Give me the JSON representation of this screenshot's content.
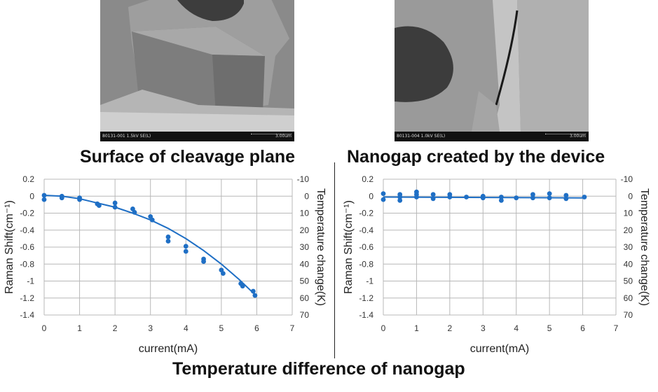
{
  "images": {
    "left": {
      "footer_id": "80131-001 1.5kV SE(L)",
      "footer_scale": "3.00um",
      "caption": "Surface of cleavage plane"
    },
    "right": {
      "footer_id": "80131-004 1.0kV SE(L)",
      "footer_scale": "3.00um",
      "caption": "Nanogap created by the device"
    }
  },
  "main_caption": "Temperature difference of nanogap",
  "colors": {
    "series": "#1f6fc5",
    "grid": "#b8b8b8",
    "axis_text": "#333333"
  },
  "chart_data": [
    {
      "type": "scatter",
      "xlabel": "current(mA)",
      "ylabel": "Raman Shift(cm⁻¹)",
      "y2label": "Temperature change(K)",
      "xlim": [
        0,
        7
      ],
      "ylim": [
        -1.4,
        0.2
      ],
      "y2lim": [
        -10,
        70
      ],
      "xticks": [
        "0",
        "1",
        "2",
        "3",
        "4",
        "5",
        "6",
        "7"
      ],
      "yticks": [
        "0.2",
        "0",
        "-0.2",
        "-0.4",
        "-0.6",
        "-0.8",
        "-1",
        "-1.2",
        "-1.4"
      ],
      "y2ticks": [
        "-10",
        "0",
        "10",
        "20",
        "30",
        "40",
        "50",
        "60",
        "70"
      ],
      "grid": true,
      "series": [
        {
          "x": [
            0.0,
            0.0,
            0.5,
            0.5,
            1.0,
            1.0,
            1.5,
            1.55,
            2.0,
            2.0,
            2.5,
            2.55,
            3.0,
            3.05,
            3.5,
            3.5,
            4.0,
            4.0,
            4.5,
            4.5,
            5.0,
            5.05,
            5.55,
            5.6,
            5.9,
            5.95
          ],
          "y": [
            0.01,
            -0.04,
            0.0,
            -0.02,
            -0.02,
            -0.04,
            -0.09,
            -0.11,
            -0.08,
            -0.13,
            -0.15,
            -0.19,
            -0.24,
            -0.28,
            -0.48,
            -0.53,
            -0.59,
            -0.65,
            -0.74,
            -0.77,
            -0.87,
            -0.91,
            -1.03,
            -1.06,
            -1.12,
            -1.17
          ]
        }
      ],
      "fit": {
        "x": [
          0,
          0.5,
          1,
          1.5,
          2,
          2.5,
          3,
          3.5,
          4,
          4.5,
          5,
          5.5,
          6
        ],
        "y": [
          0.01,
          0.0,
          -0.03,
          -0.08,
          -0.13,
          -0.2,
          -0.28,
          -0.38,
          -0.5,
          -0.64,
          -0.8,
          -0.98,
          -1.18
        ]
      }
    },
    {
      "type": "scatter",
      "xlabel": "current(mA)",
      "ylabel": "Raman Shift(cm⁻¹)",
      "y2label": "Temperature change(K)",
      "xlim": [
        0,
        7
      ],
      "ylim": [
        -1.4,
        0.2
      ],
      "y2lim": [
        -10,
        70
      ],
      "xticks": [
        "0",
        "1",
        "2",
        "3",
        "4",
        "5",
        "6",
        "7"
      ],
      "yticks": [
        "0.2",
        "0",
        "-0.2",
        "-0.4",
        "-0.6",
        "-0.8",
        "-1",
        "-1.2",
        "-1.4"
      ],
      "y2ticks": [
        "-10",
        "0",
        "10",
        "20",
        "30",
        "40",
        "50",
        "60",
        "70"
      ],
      "grid": true,
      "series": [
        {
          "x": [
            0.0,
            0.0,
            0.5,
            0.5,
            0.5,
            1.0,
            1.0,
            1.0,
            1.5,
            1.5,
            2.0,
            2.0,
            2.5,
            3.0,
            3.0,
            3.55,
            3.55,
            4.0,
            4.5,
            4.5,
            5.0,
            5.0,
            5.5,
            5.5,
            6.05
          ],
          "y": [
            0.03,
            -0.04,
            0.02,
            -0.01,
            -0.05,
            0.05,
            0.02,
            -0.01,
            0.02,
            -0.03,
            0.02,
            -0.01,
            -0.01,
            0.0,
            -0.02,
            -0.01,
            -0.05,
            -0.02,
            0.02,
            -0.02,
            0.03,
            -0.02,
            0.01,
            -0.03,
            -0.01
          ]
        }
      ],
      "fit": {
        "x": [
          0,
          6.05
        ],
        "y": [
          -0.01,
          -0.02
        ]
      }
    }
  ]
}
